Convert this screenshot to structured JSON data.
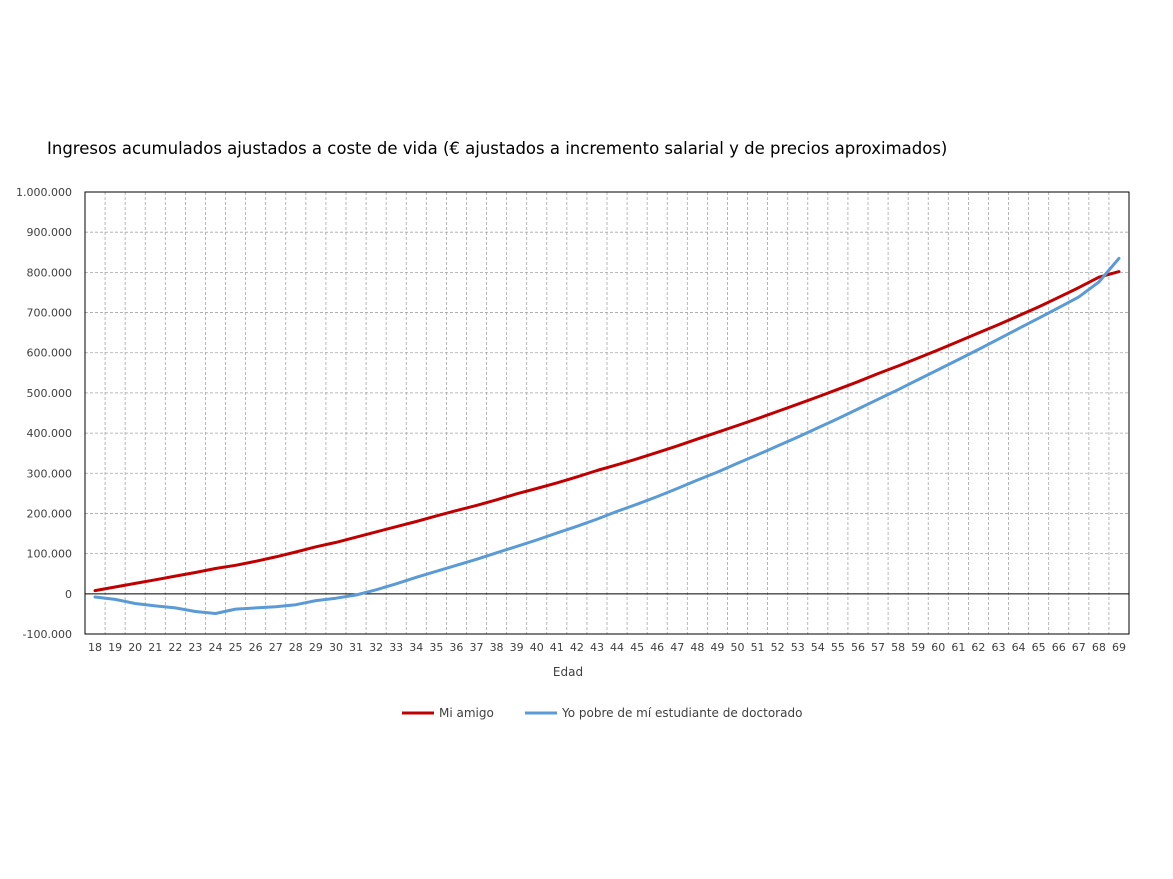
{
  "chart_data": {
    "type": "line",
    "title": "Ingresos acumulados ajustados a coste de vida (€ ajustados a incremento salarial y de precios aproximados)",
    "xlabel": "Edad",
    "ylabel": "",
    "x": [
      18,
      19,
      20,
      21,
      22,
      23,
      24,
      25,
      26,
      27,
      28,
      29,
      30,
      31,
      32,
      33,
      34,
      35,
      36,
      37,
      38,
      39,
      40,
      41,
      42,
      43,
      44,
      45,
      46,
      47,
      48,
      49,
      50,
      51,
      52,
      53,
      54,
      55,
      56,
      57,
      58,
      59,
      60,
      61,
      62,
      63,
      64,
      65,
      66,
      67,
      68,
      69
    ],
    "ylim": [
      -100000,
      1000000
    ],
    "yticks": [
      -100000,
      0,
      100000,
      200000,
      300000,
      400000,
      500000,
      600000,
      700000,
      800000,
      900000,
      1000000
    ],
    "ytick_labels": [
      "-100.000",
      "0",
      "100.000",
      "200.000",
      "300.000",
      "400.000",
      "500.000",
      "600.000",
      "700.000",
      "800.000",
      "900.000",
      "1.000.000"
    ],
    "grid": true,
    "legend_position": "bottom",
    "series": [
      {
        "name": "Mi amigo",
        "color": "#C00000",
        "values": [
          8000,
          17000,
          26000,
          35000,
          44000,
          53000,
          63000,
          71000,
          81000,
          92000,
          104000,
          117000,
          128000,
          141000,
          154000,
          167000,
          180000,
          194000,
          207000,
          220000,
          234000,
          249000,
          262000,
          276000,
          291000,
          307000,
          321000,
          336000,
          352000,
          368000,
          385000,
          402000,
          419000,
          436000,
          454000,
          472000,
          490000,
          509000,
          528000,
          548000,
          567000,
          587000,
          607000,
          628000,
          649000,
          670000,
          692000,
          714000,
          738000,
          762000,
          788000,
          802000
        ]
      },
      {
        "name": "Yo pobre de mí estudiante de doctorado",
        "color": "#5B9BD5",
        "values": [
          -8000,
          -14000,
          -24000,
          -30000,
          -35000,
          -44000,
          -49000,
          -38000,
          -35000,
          -32000,
          -27000,
          -17000,
          -11000,
          -3000,
          10000,
          25000,
          41000,
          56000,
          71000,
          86000,
          102000,
          118000,
          134000,
          151000,
          168000,
          186000,
          205000,
          223000,
          242000,
          262000,
          283000,
          303000,
          325000,
          346000,
          368000,
          390000,
          413000,
          436000,
          460000,
          484000,
          508000,
          533000,
          558000,
          583000,
          608000,
          634000,
          660000,
          686000,
          712000,
          739000,
          776000,
          835000
        ]
      }
    ]
  }
}
